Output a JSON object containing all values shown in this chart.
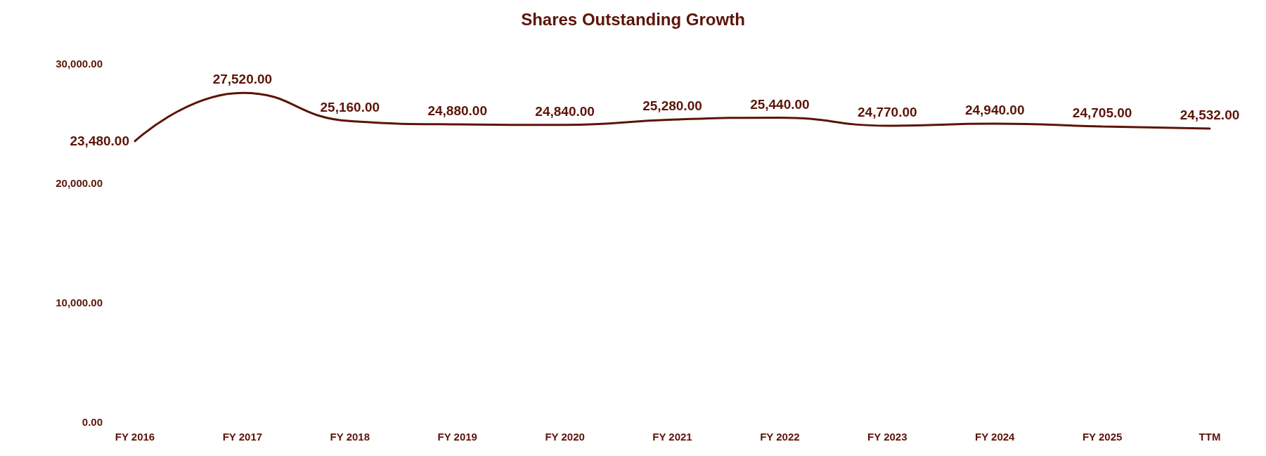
{
  "chart_data": {
    "type": "line",
    "title": "Shares Outstanding Growth",
    "categories": [
      "FY 2016",
      "FY 2017",
      "FY 2018",
      "FY 2019",
      "FY 2020",
      "FY 2021",
      "FY 2022",
      "FY 2023",
      "FY 2024",
      "FY 2025",
      "TTM"
    ],
    "series": [
      {
        "color": "#5c1407",
        "values": [
          23480,
          27520,
          25160,
          24880,
          24840,
          25280,
          25440,
          24770,
          24940,
          24705,
          24532
        ],
        "value_labels": [
          "23,480.00",
          "27,520.00",
          "25,160.00",
          "24,880.00",
          "24,840.00",
          "25,280.00",
          "25,440.00",
          "24,770.00",
          "24,940.00",
          "24,705.00",
          "24,532.00"
        ]
      }
    ],
    "ylim": [
      0,
      30000
    ],
    "yticks": [
      {
        "value": 0,
        "label": "0.00"
      },
      {
        "value": 10000,
        "label": "10,000.00"
      },
      {
        "value": 20000,
        "label": "20,000.00"
      },
      {
        "value": 30000,
        "label": "30,000.00"
      }
    ],
    "grid": false,
    "marker": "none",
    "line_style": "solid"
  }
}
